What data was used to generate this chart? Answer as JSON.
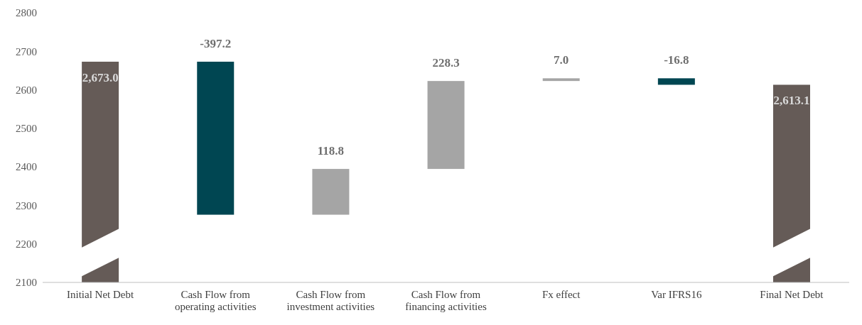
{
  "chart_data": {
    "type": "bar",
    "categories": [
      "Initial Net Debt",
      "Cash Flow from operating activities",
      "Cash Flow from investment activities",
      "Cash Flow from financing activities",
      "Fx effect",
      "Var IFRS16",
      "Final Net Debt"
    ],
    "values": [
      2673.0,
      -397.2,
      118.8,
      228.3,
      7.0,
      -16.8,
      2613.1
    ],
    "base": [
      null,
      2673.0,
      2275.8,
      2394.6,
      2622.9,
      2629.9,
      null
    ],
    "colors": [
      "#655b57",
      "#004652",
      "#a5a5a5",
      "#a5a5a5",
      "#a5a5a5",
      "#004652",
      "#655b57"
    ],
    "value_labels": [
      "2,673.0",
      "-397.2",
      "118.8",
      "228.3",
      "7.0",
      "-16.8",
      "2,613.1"
    ],
    "ylim": [
      2100,
      2800
    ],
    "yticks": [
      2100,
      2200,
      2300,
      2400,
      2500,
      2600,
      2700,
      2800
    ]
  }
}
